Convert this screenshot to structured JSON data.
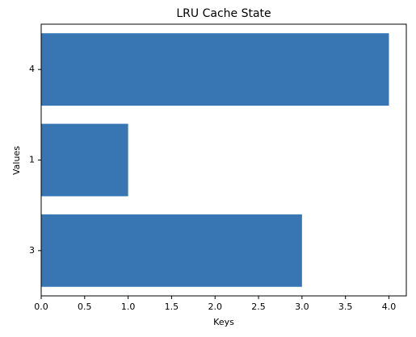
{
  "chart_data": {
    "type": "barh",
    "title": "LRU Cache State",
    "x_label": "Keys",
    "y_label": "Values",
    "categories": [
      "3",
      "1",
      "4"
    ],
    "values": [
      3,
      1,
      4
    ],
    "color": "#3776b2",
    "xlim": [
      0,
      4.2
    ],
    "xticks": [
      {
        "value": 0,
        "label": "0.0"
      },
      0.5,
      {
        "value": 1,
        "label": "1.0"
      },
      1.5,
      {
        "value": 2,
        "label": "2.0"
      },
      2.5,
      {
        "value": 3,
        "label": "3.0"
      },
      3.5,
      {
        "value": 4,
        "label": "4.0"
      }
    ],
    "grid": false
  }
}
